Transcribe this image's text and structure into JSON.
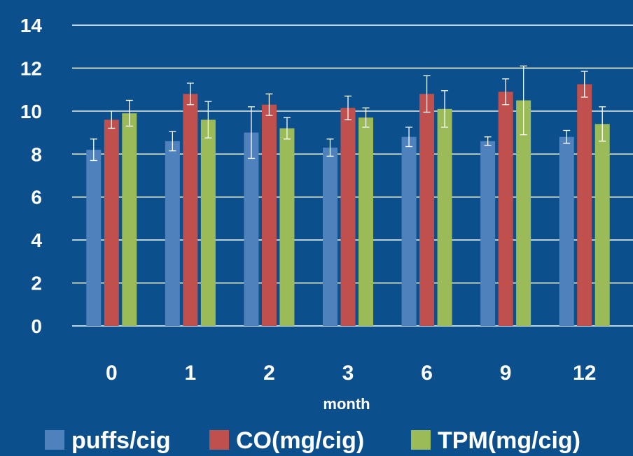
{
  "chart_data": {
    "type": "bar",
    "xlabel": "month",
    "ylabel": "",
    "ylim": [
      0,
      14
    ],
    "yticks": [
      0,
      2,
      4,
      6,
      8,
      10,
      12,
      14
    ],
    "categories": [
      "0",
      "1",
      "2",
      "3",
      "6",
      "9",
      "12"
    ],
    "grid": true,
    "legend_position": "bottom",
    "series": [
      {
        "name": "puffs/cig",
        "color": "#4f81bd",
        "values": [
          8.2,
          8.6,
          9.0,
          8.3,
          8.8,
          8.6,
          8.8
        ],
        "errors": [
          0.5,
          0.45,
          1.2,
          0.4,
          0.45,
          0.2,
          0.3
        ]
      },
      {
        "name": "CO(mg/cig)",
        "color": "#c0504d",
        "values": [
          9.6,
          10.8,
          10.3,
          10.15,
          10.8,
          10.9,
          11.25
        ],
        "errors": [
          0.4,
          0.5,
          0.5,
          0.55,
          0.85,
          0.6,
          0.6
        ]
      },
      {
        "name": "TPM(mg/cig)",
        "color": "#9bbb59",
        "values": [
          9.9,
          9.6,
          9.2,
          9.7,
          10.1,
          10.5,
          9.4
        ],
        "errors": [
          0.6,
          0.85,
          0.5,
          0.45,
          0.85,
          1.6,
          0.8
        ]
      }
    ]
  }
}
